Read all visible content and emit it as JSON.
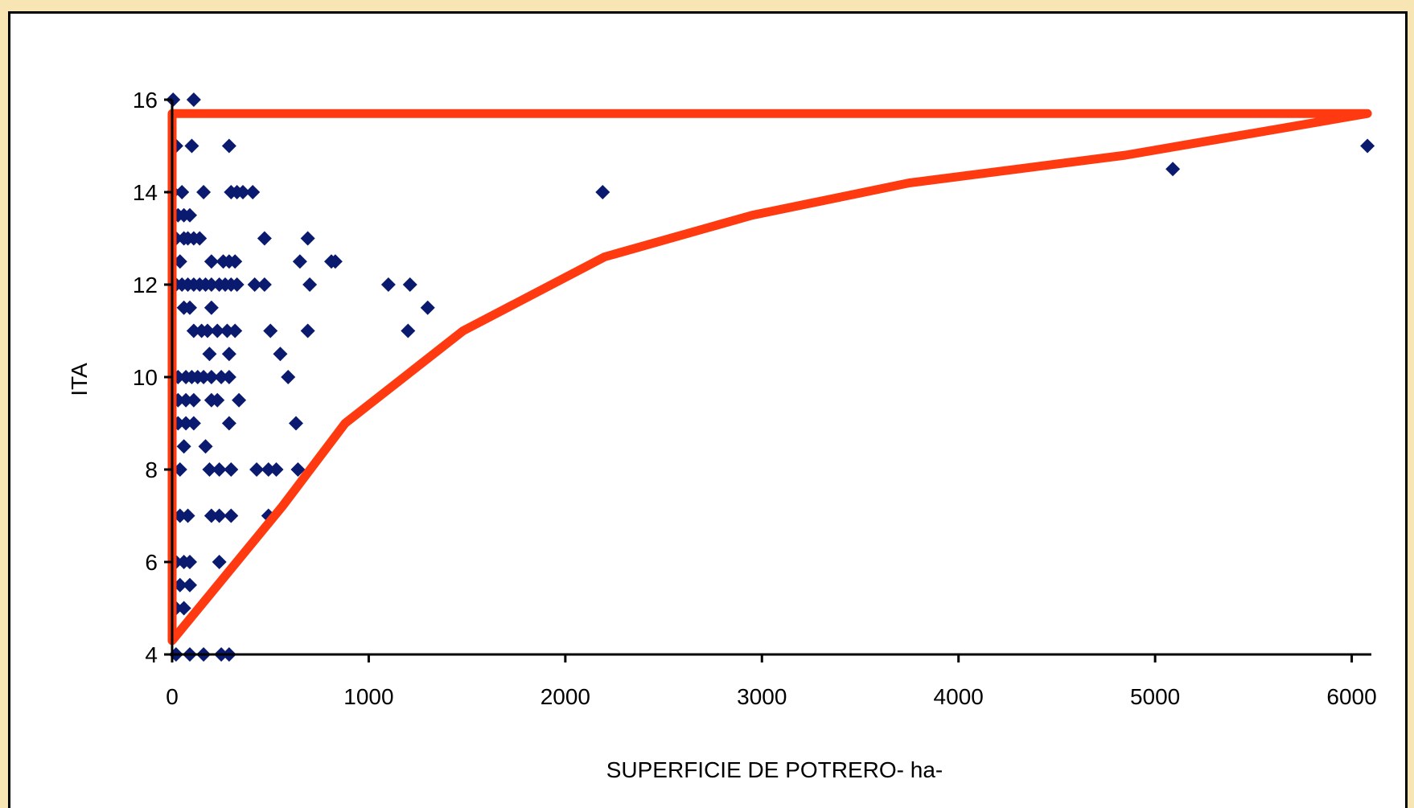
{
  "chart_data": {
    "type": "scatter",
    "title": "",
    "xlabel": "SUPERFICIE DE POTRERO- ha-",
    "ylabel": "ITA",
    "xlim": [
      0,
      6100
    ],
    "ylim": [
      4,
      16
    ],
    "xticks": [
      "0",
      "1000",
      "2000",
      "3000",
      "4000",
      "5000",
      "6000"
    ],
    "yticks": [
      "4",
      "6",
      "8",
      "10",
      "12",
      "14",
      "16"
    ],
    "grid": false,
    "legend": "none",
    "colors": {
      "points": "#0a1a6e",
      "envelope": "#ff3a10",
      "frame_background": "#f7e6b4"
    },
    "series": [
      {
        "values": [
          [
            5,
            16
          ],
          [
            110,
            16
          ],
          [
            20,
            15
          ],
          [
            100,
            15
          ],
          [
            290,
            15
          ],
          [
            5090,
            14.5
          ],
          [
            6080,
            15
          ],
          [
            5,
            14
          ],
          [
            50,
            14
          ],
          [
            160,
            14
          ],
          [
            300,
            14
          ],
          [
            330,
            14
          ],
          [
            360,
            14
          ],
          [
            410,
            14
          ],
          [
            2190,
            14
          ],
          [
            30,
            13.5
          ],
          [
            60,
            13.5
          ],
          [
            90,
            13.5
          ],
          [
            20,
            13
          ],
          [
            60,
            13
          ],
          [
            80,
            13
          ],
          [
            110,
            13
          ],
          [
            140,
            13
          ],
          [
            470,
            13
          ],
          [
            690,
            13
          ],
          [
            40,
            12.5
          ],
          [
            200,
            12.5
          ],
          [
            260,
            12.5
          ],
          [
            290,
            12.5
          ],
          [
            320,
            12.5
          ],
          [
            650,
            12.5
          ],
          [
            810,
            12.5
          ],
          [
            830,
            12.5
          ],
          [
            20,
            12
          ],
          [
            50,
            12
          ],
          [
            80,
            12
          ],
          [
            110,
            12
          ],
          [
            140,
            12
          ],
          [
            170,
            12
          ],
          [
            200,
            12
          ],
          [
            240,
            12
          ],
          [
            270,
            12
          ],
          [
            300,
            12
          ],
          [
            330,
            12
          ],
          [
            420,
            12
          ],
          [
            470,
            12
          ],
          [
            700,
            12
          ],
          [
            1100,
            12
          ],
          [
            1210,
            12
          ],
          [
            1300,
            11.5
          ],
          [
            60,
            11.5
          ],
          [
            90,
            11.5
          ],
          [
            200,
            11.5
          ],
          [
            110,
            11
          ],
          [
            150,
            11
          ],
          [
            180,
            11
          ],
          [
            230,
            11
          ],
          [
            280,
            11
          ],
          [
            320,
            11
          ],
          [
            500,
            11
          ],
          [
            690,
            11
          ],
          [
            1200,
            11
          ],
          [
            190,
            10.5
          ],
          [
            290,
            10.5
          ],
          [
            550,
            10.5
          ],
          [
            30,
            10
          ],
          [
            70,
            10
          ],
          [
            100,
            10
          ],
          [
            130,
            10
          ],
          [
            160,
            10
          ],
          [
            200,
            10
          ],
          [
            250,
            10
          ],
          [
            290,
            10
          ],
          [
            590,
            10
          ],
          [
            30,
            9.5
          ],
          [
            70,
            9.5
          ],
          [
            110,
            9.5
          ],
          [
            200,
            9.5
          ],
          [
            230,
            9.5
          ],
          [
            340,
            9.5
          ],
          [
            30,
            9
          ],
          [
            70,
            9
          ],
          [
            110,
            9
          ],
          [
            290,
            9
          ],
          [
            630,
            9
          ],
          [
            60,
            8.5
          ],
          [
            170,
            8.5
          ],
          [
            40,
            8
          ],
          [
            190,
            8
          ],
          [
            240,
            8
          ],
          [
            300,
            8
          ],
          [
            430,
            8
          ],
          [
            490,
            8
          ],
          [
            530,
            8
          ],
          [
            640,
            8
          ],
          [
            40,
            7
          ],
          [
            80,
            7
          ],
          [
            200,
            7
          ],
          [
            240,
            7
          ],
          [
            300,
            7
          ],
          [
            490,
            7
          ],
          [
            20,
            6
          ],
          [
            60,
            6
          ],
          [
            90,
            6
          ],
          [
            240,
            6
          ],
          [
            40,
            5.5
          ],
          [
            90,
            5.5
          ],
          [
            20,
            5
          ],
          [
            60,
            5
          ],
          [
            20,
            4
          ],
          [
            90,
            4
          ],
          [
            160,
            4
          ],
          [
            250,
            4
          ],
          [
            290,
            4
          ]
        ]
      }
    ],
    "envelope": [
      [
        0,
        4.3
      ],
      [
        0,
        15.7
      ],
      [
        6080,
        15.7
      ],
      [
        4850,
        14.8
      ],
      [
        3750,
        14.2
      ],
      [
        2950,
        13.5
      ],
      [
        2200,
        12.6
      ],
      [
        1480,
        11
      ],
      [
        880,
        9
      ],
      [
        560,
        7.2
      ],
      [
        0,
        4.3
      ]
    ]
  }
}
